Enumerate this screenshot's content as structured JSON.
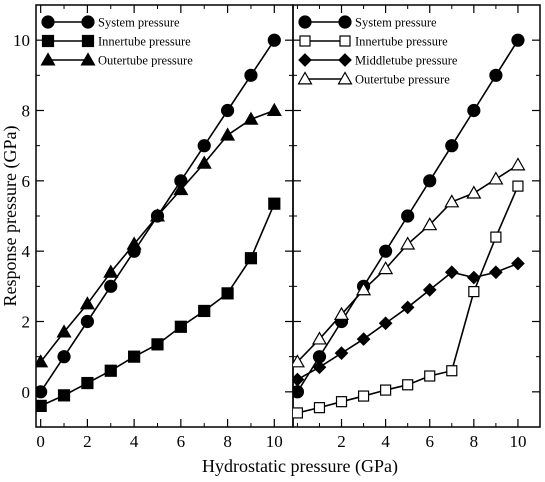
{
  "chart_data": [
    {
      "type": "line",
      "panel": "left",
      "xlabel": "Hydrostatic pressure (GPa)",
      "ylabel": "Response pressure (GPa)",
      "xlim": [
        -0.2,
        10.8
      ],
      "ylim": [
        -1.0,
        11.0
      ],
      "xticks": [
        0,
        2,
        4,
        6,
        8,
        10
      ],
      "yticks": [
        0,
        2,
        4,
        6,
        8,
        10
      ],
      "grid": false,
      "legend": "top-left",
      "series": [
        {
          "name": "System pressure",
          "marker": "filled-circle",
          "x": [
            0,
            1,
            2,
            3,
            4,
            5,
            6,
            7,
            8,
            9,
            10
          ],
          "y": [
            0,
            1,
            2,
            3,
            4,
            5,
            6,
            7,
            8,
            9,
            10
          ]
        },
        {
          "name": "Innertube pressure",
          "marker": "filled-square",
          "x": [
            0,
            1,
            2,
            3,
            4,
            5,
            6,
            7,
            8,
            9,
            10
          ],
          "y": [
            -0.4,
            -0.1,
            0.25,
            0.6,
            1.0,
            1.35,
            1.85,
            2.3,
            2.8,
            3.8,
            5.35
          ]
        },
        {
          "name": "Outertube pressure",
          "marker": "filled-triangle",
          "x": [
            0,
            1,
            2,
            3,
            4,
            5,
            6,
            7,
            8,
            9,
            10
          ],
          "y": [
            0.85,
            1.7,
            2.5,
            3.4,
            4.2,
            5.0,
            5.75,
            6.5,
            7.3,
            7.75,
            8.0
          ]
        }
      ]
    },
    {
      "type": "line",
      "panel": "right",
      "xlim": [
        -0.2,
        11.0
      ],
      "ylim": [
        -1.0,
        11.0
      ],
      "xticks": [
        2,
        4,
        6,
        8,
        10
      ],
      "yticks": [
        0,
        2,
        4,
        6,
        8,
        10
      ],
      "grid": false,
      "legend": "top-left",
      "series": [
        {
          "name": "System pressure",
          "marker": "filled-circle",
          "x": [
            0,
            1,
            2,
            3,
            4,
            5,
            6,
            7,
            8,
            9,
            10
          ],
          "y": [
            0,
            1,
            2,
            3,
            4,
            5,
            6,
            7,
            8,
            9,
            10
          ]
        },
        {
          "name": "Innertube pressure",
          "marker": "open-square",
          "x": [
            0,
            1,
            2,
            3,
            4,
            5,
            6,
            7,
            8,
            9,
            10
          ],
          "y": [
            -0.6,
            -0.45,
            -0.28,
            -0.12,
            0.05,
            0.2,
            0.45,
            0.6,
            2.85,
            4.4,
            5.85
          ]
        },
        {
          "name": "Middletube pressure",
          "marker": "filled-diamond",
          "x": [
            0,
            1,
            2,
            3,
            4,
            5,
            6,
            7,
            8,
            9,
            10
          ],
          "y": [
            0.35,
            0.7,
            1.1,
            1.5,
            1.95,
            2.4,
            2.9,
            3.4,
            3.25,
            3.4,
            3.65
          ]
        },
        {
          "name": "Outertube pressure",
          "marker": "open-triangle",
          "x": [
            0,
            1,
            2,
            3,
            4,
            5,
            6,
            7,
            8,
            9,
            10
          ],
          "y": [
            0.85,
            1.5,
            2.2,
            2.9,
            3.5,
            4.2,
            4.75,
            5.4,
            5.65,
            6.05,
            6.45
          ]
        }
      ]
    }
  ]
}
